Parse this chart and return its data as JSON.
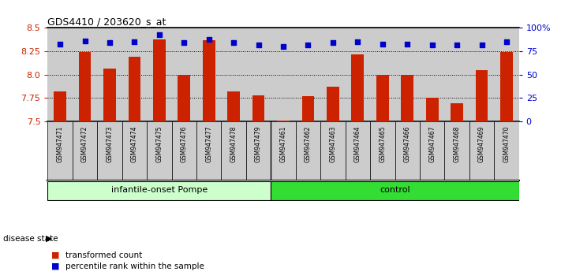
{
  "title": "GDS4410 / 203620_s_at",
  "samples": [
    "GSM947471",
    "GSM947472",
    "GSM947473",
    "GSM947474",
    "GSM947475",
    "GSM947476",
    "GSM947477",
    "GSM947478",
    "GSM947479",
    "GSM947461",
    "GSM947462",
    "GSM947463",
    "GSM947464",
    "GSM947465",
    "GSM947466",
    "GSM947467",
    "GSM947468",
    "GSM947469",
    "GSM947470"
  ],
  "bar_values": [
    7.82,
    8.24,
    8.06,
    8.19,
    8.38,
    8.0,
    8.37,
    7.82,
    7.78,
    7.51,
    7.77,
    7.87,
    8.22,
    8.0,
    8.0,
    7.75,
    7.69,
    8.05,
    8.24
  ],
  "percentile_values": [
    83,
    86,
    84,
    85,
    93,
    84,
    88,
    84,
    82,
    80,
    82,
    84,
    85,
    83,
    83,
    82,
    82,
    82,
    85
  ],
  "groups": [
    {
      "label": "infantile-onset Pompe",
      "start": 0,
      "end": 9,
      "color": "#CCFFCC"
    },
    {
      "label": "control",
      "start": 9,
      "end": 19,
      "color": "#33DD33"
    }
  ],
  "ylim_left": [
    7.5,
    8.5
  ],
  "yticks_left": [
    7.5,
    7.75,
    8.0,
    8.25,
    8.5
  ],
  "ylim_right": [
    0,
    100
  ],
  "yticks_right": [
    0,
    25,
    50,
    75,
    100
  ],
  "ytick_labels_right": [
    "0",
    "25",
    "50",
    "75",
    "100%"
  ],
  "bar_color": "#CC2200",
  "dot_color": "#0000CC",
  "plot_bg_color": "#CCCCCC",
  "xtick_bg_color": "#CCCCCC",
  "disease_label": "disease state",
  "legend_items": [
    {
      "color": "#CC2200",
      "label": "transformed count"
    },
    {
      "color": "#0000CC",
      "label": "percentile rank within the sample"
    }
  ]
}
